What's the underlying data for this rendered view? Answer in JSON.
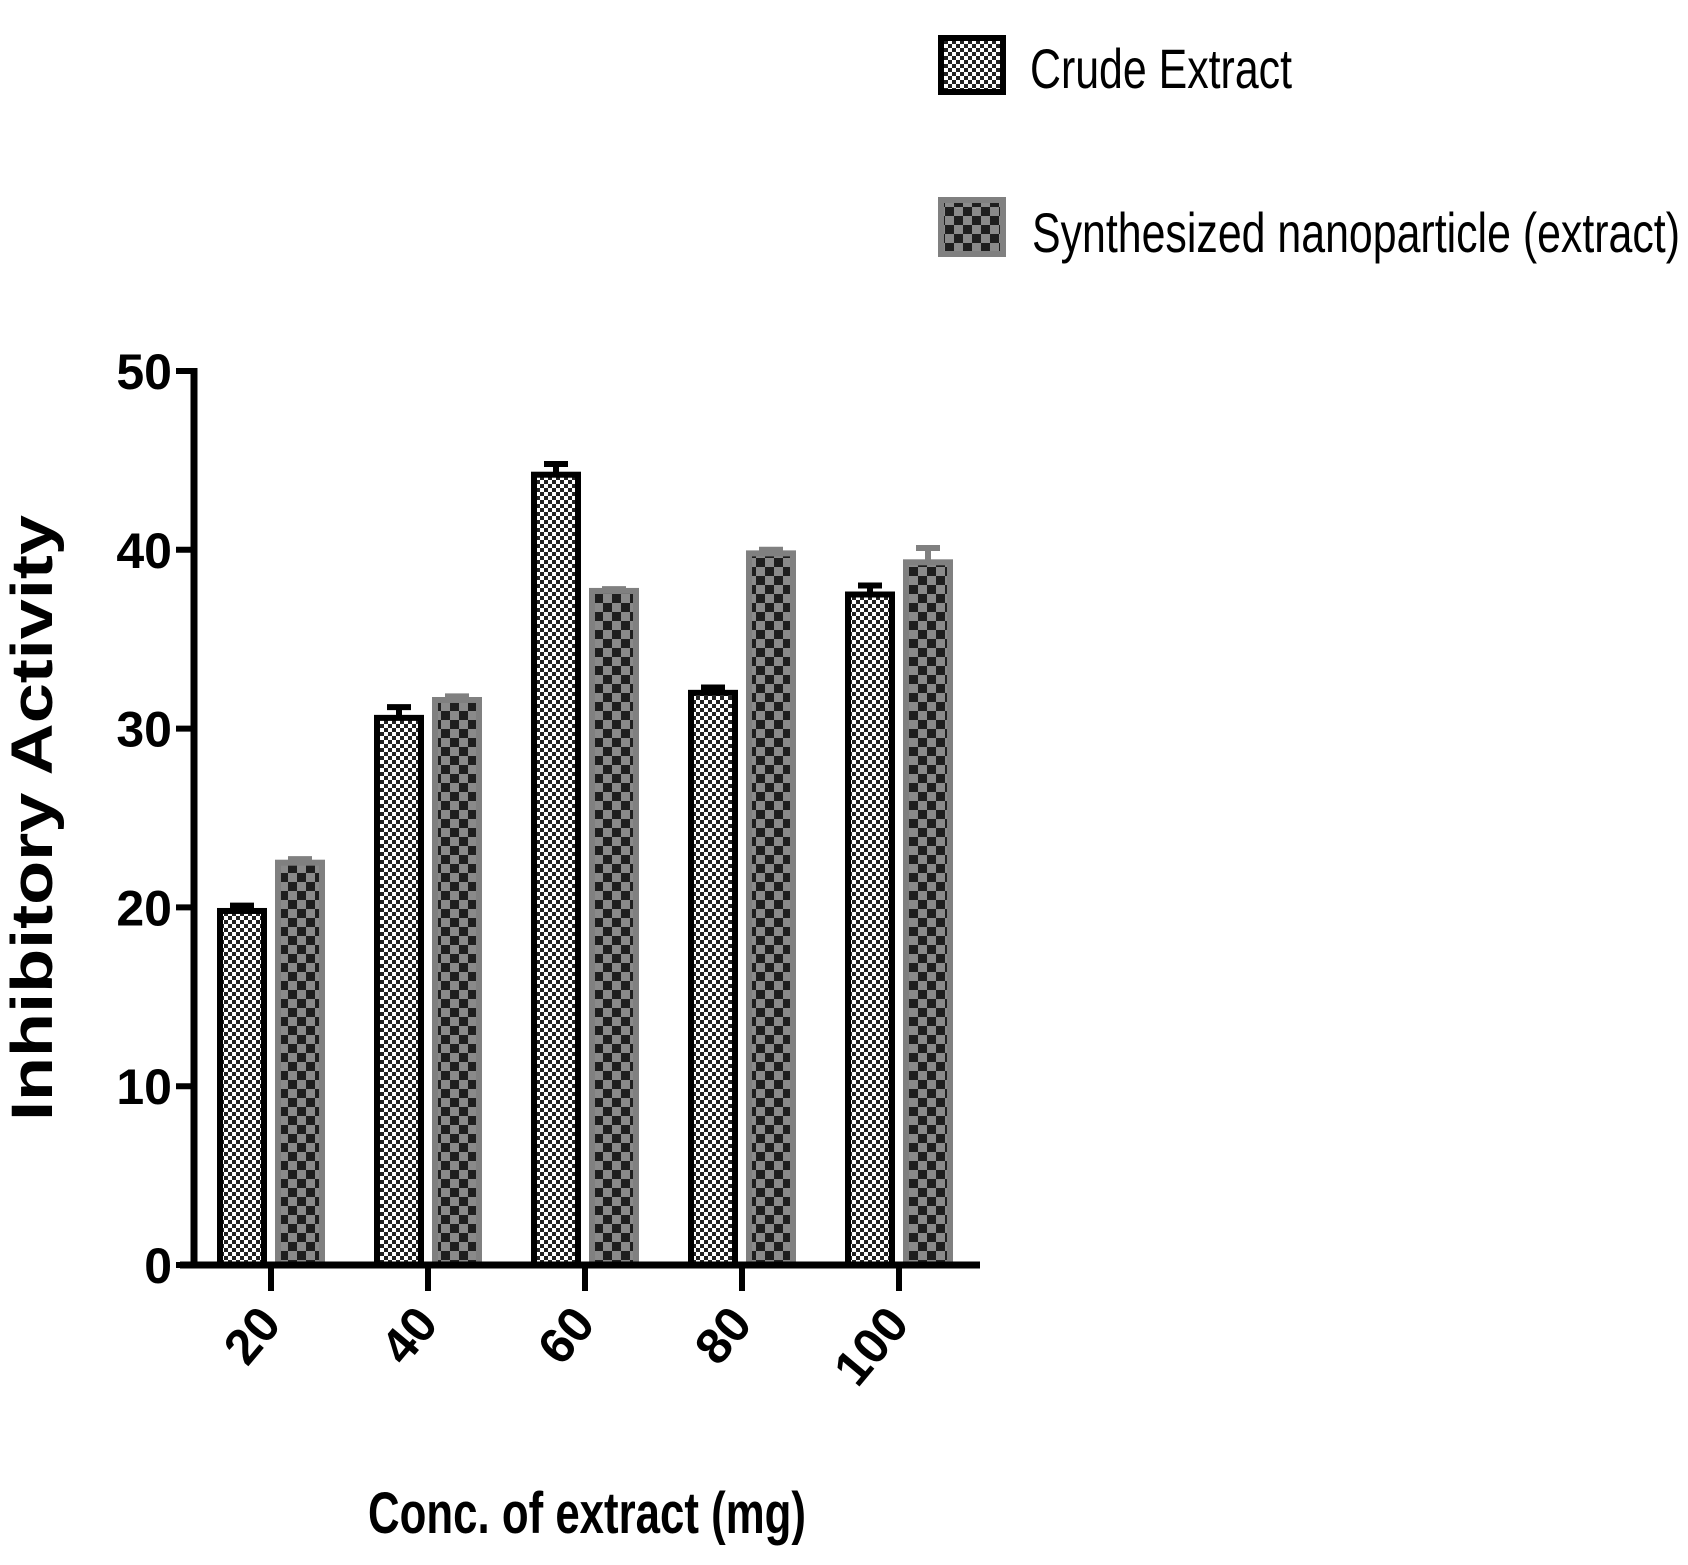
{
  "chart_data": {
    "type": "bar",
    "title": "",
    "xlabel": "Conc. of extract (mg)",
    "ylabel": "Inhibitory Activity",
    "categories": [
      "20",
      "40",
      "60",
      "80",
      "100"
    ],
    "ylim": [
      0,
      50
    ],
    "yticks": [
      "0",
      "10",
      "20",
      "30",
      "40",
      "50"
    ],
    "grid": false,
    "legend_position": "top-right",
    "series": [
      {
        "name": "Crude Extract",
        "values": [
          19.8,
          30.6,
          44.2,
          32.0,
          37.5
        ],
        "errors": [
          0.3,
          0.6,
          0.6,
          0.3,
          0.5
        ],
        "color": "#000000"
      },
      {
        "name": "Synthesized nanoparticle (extract)",
        "values": [
          22.5,
          31.6,
          37.7,
          39.8,
          39.3
        ],
        "errors": [
          0.2,
          0.2,
          0.1,
          0.2,
          0.8
        ],
        "color": "#808080"
      }
    ]
  }
}
